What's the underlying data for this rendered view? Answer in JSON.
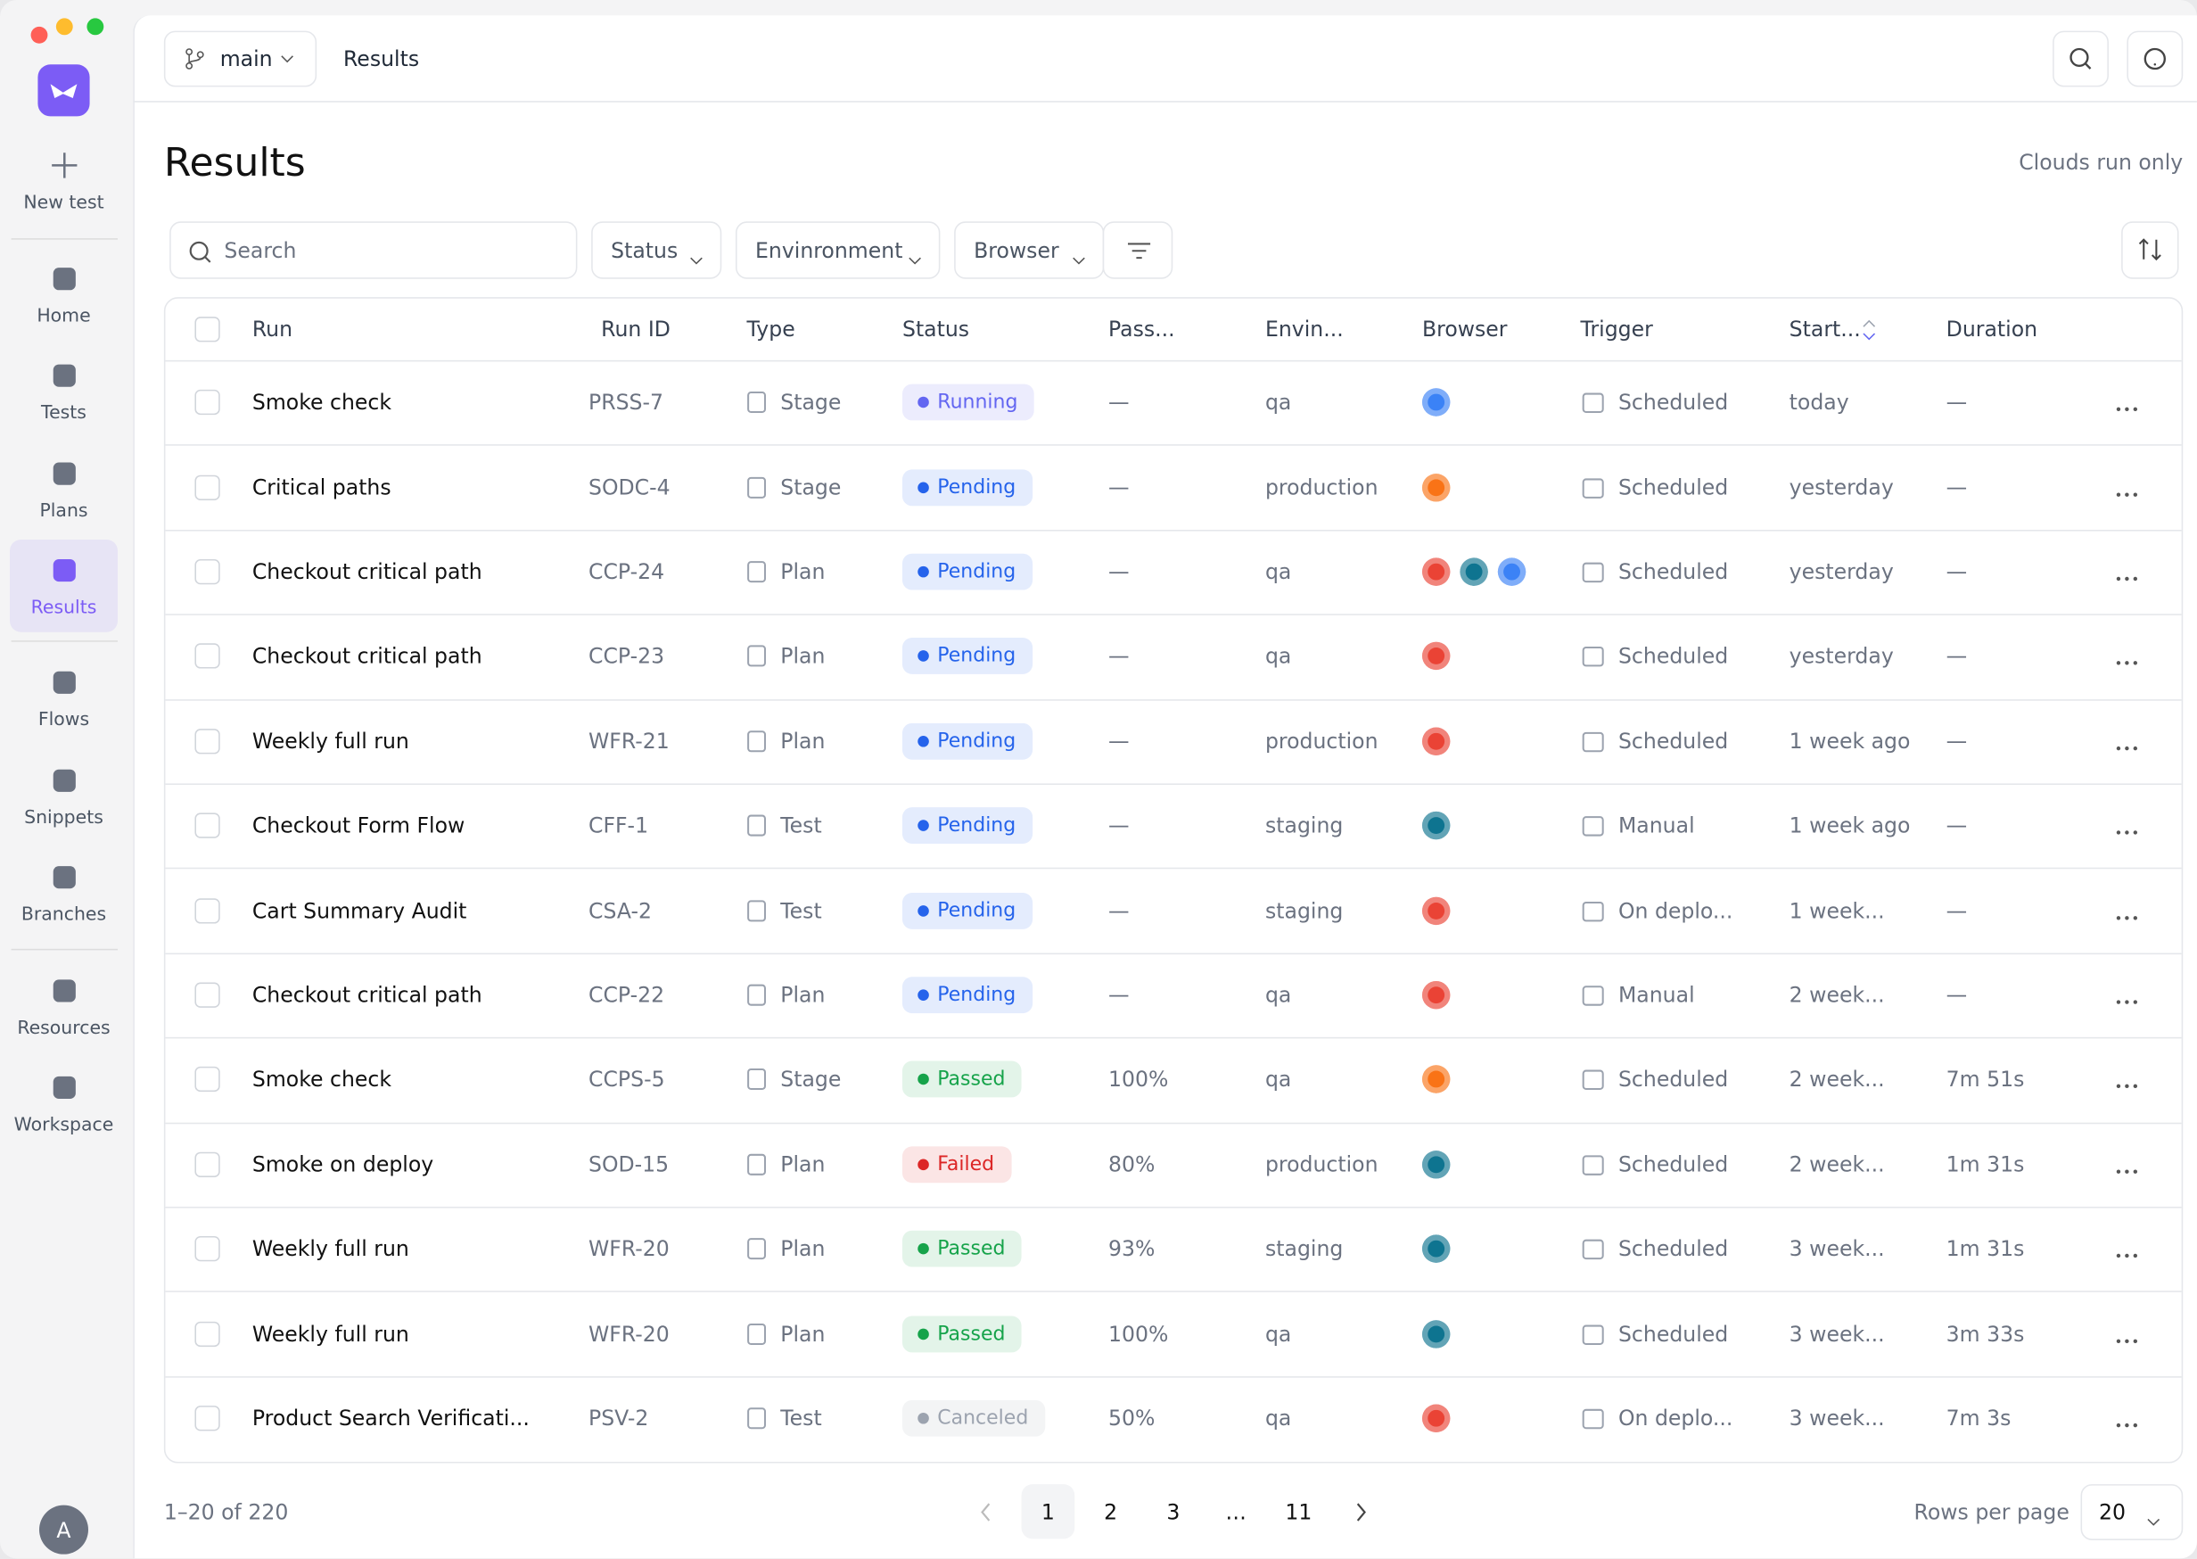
{
  "window": {
    "branch": "main",
    "breadcrumb": "Results"
  },
  "sidebar": {
    "items": [
      "New test",
      "Home",
      "Tests",
      "Plans",
      "Results",
      "Flows",
      "Snippets",
      "Branches",
      "Resources",
      "Workspace"
    ],
    "active_index": 4,
    "avatar": "A"
  },
  "page": {
    "title": "Results",
    "toggle_label": "Clouds run only"
  },
  "filters": {
    "search_placeholder": "Search",
    "dropdowns": [
      "Status",
      "Envinronment",
      "Browser"
    ]
  },
  "table": {
    "columns": [
      "Run",
      "Run ID",
      "Type",
      "Status",
      "Pass...",
      "Envin...",
      "Browser",
      "Trigger",
      "Start...",
      "Duration"
    ],
    "rows": [
      {
        "run": "Smoke check",
        "id": "PRSS-7",
        "type": "Stage",
        "status": "Running",
        "status_color": "#6366f1",
        "pass": "—",
        "env": "qa",
        "browsers": [
          "#3b82f6"
        ],
        "trigger": "Scheduled",
        "started": "today",
        "duration": "—"
      },
      {
        "run": "Critical paths",
        "id": "SODC-4",
        "type": "Stage",
        "status": "Pending",
        "status_color": "#2563eb",
        "pass": "—",
        "env": "production",
        "browsers": [
          "#f97316"
        ],
        "trigger": "Scheduled",
        "started": "yesterday",
        "duration": "—"
      },
      {
        "run": "Checkout critical path",
        "id": "CCP-24",
        "type": "Plan",
        "status": "Pending",
        "status_color": "#2563eb",
        "pass": "—",
        "env": "qa",
        "browsers": [
          "#ea4335",
          "#0e7490",
          "#3b82f6"
        ],
        "trigger": "Scheduled",
        "started": "yesterday",
        "duration": "—"
      },
      {
        "run": "Checkout critical path",
        "id": "CCP-23",
        "type": "Plan",
        "status": "Pending",
        "status_color": "#2563eb",
        "pass": "—",
        "env": "qa",
        "browsers": [
          "#ea4335"
        ],
        "trigger": "Scheduled",
        "started": "yesterday",
        "duration": "—"
      },
      {
        "run": "Weekly full run",
        "id": "WFR-21",
        "type": "Plan",
        "status": "Pending",
        "status_color": "#2563eb",
        "pass": "—",
        "env": "production",
        "browsers": [
          "#ea4335"
        ],
        "trigger": "Scheduled",
        "started": "1 week ago",
        "duration": "—"
      },
      {
        "run": "Checkout Form Flow",
        "id": "CFF-1",
        "type": "Test",
        "status": "Pending",
        "status_color": "#2563eb",
        "pass": "—",
        "env": "staging",
        "browsers": [
          "#0e7490"
        ],
        "trigger": "Manual",
        "started": "1 week ago",
        "duration": "—"
      },
      {
        "run": "Cart Summary Audit",
        "id": "CSA-2",
        "type": "Test",
        "status": "Pending",
        "status_color": "#2563eb",
        "pass": "—",
        "env": "staging",
        "browsers": [
          "#ea4335"
        ],
        "trigger": "On deplo...",
        "started": "1 week...",
        "duration": "—"
      },
      {
        "run": "Checkout critical path",
        "id": "CCP-22",
        "type": "Plan",
        "status": "Pending",
        "status_color": "#2563eb",
        "pass": "—",
        "env": "qa",
        "browsers": [
          "#ea4335"
        ],
        "trigger": "Manual",
        "started": "2 week...",
        "duration": "—"
      },
      {
        "run": "Smoke check",
        "id": "CCPS-5",
        "type": "Stage",
        "status": "Passed",
        "status_color": "#16a34a",
        "pass": "100%",
        "env": "qa",
        "browsers": [
          "#f97316"
        ],
        "trigger": "Scheduled",
        "started": "2 week...",
        "duration": "7m 51s"
      },
      {
        "run": "Smoke on deploy",
        "id": "SOD-15",
        "type": "Plan",
        "status": "Failed",
        "status_color": "#dc2626",
        "pass": "80%",
        "env": "production",
        "browsers": [
          "#0e7490"
        ],
        "trigger": "Scheduled",
        "started": "2 week...",
        "duration": "1m 31s"
      },
      {
        "run": "Weekly full run",
        "id": "WFR-20",
        "type": "Plan",
        "status": "Passed",
        "status_color": "#16a34a",
        "pass": "93%",
        "env": "staging",
        "browsers": [
          "#0e7490"
        ],
        "trigger": "Scheduled",
        "started": "3 week...",
        "duration": "1m 31s"
      },
      {
        "run": "Weekly full run",
        "id": "WFR-20",
        "type": "Plan",
        "status": "Passed",
        "status_color": "#16a34a",
        "pass": "100%",
        "env": "qa",
        "browsers": [
          "#0e7490"
        ],
        "trigger": "Scheduled",
        "started": "3 week...",
        "duration": "3m 33s"
      },
      {
        "run": "Product Search Verificati...",
        "id": "PSV-2",
        "type": "Test",
        "status": "Canceled",
        "status_color": "#9ca3af",
        "pass": "50%",
        "env": "qa",
        "browsers": [
          "#ea4335"
        ],
        "trigger": "On deplo...",
        "started": "3 week...",
        "duration": "7m 3s"
      }
    ]
  },
  "pagination": {
    "summary": "1–20 of 220",
    "pages": [
      "1",
      "2",
      "3",
      "…",
      "11"
    ],
    "current_index": 0,
    "rows_label": "Rows per page",
    "rows_value": "20"
  }
}
